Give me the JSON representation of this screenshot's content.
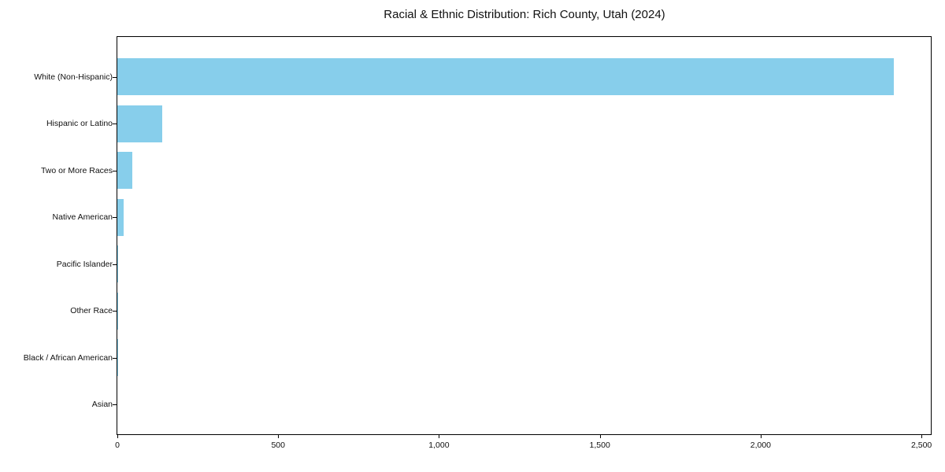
{
  "chart_data": {
    "type": "bar",
    "orientation": "horizontal",
    "title": "Racial & Ethnic Distribution: Rich County, Utah (2024)",
    "categories": [
      "White (Non-Hispanic)",
      "Hispanic or Latino",
      "Two or More Races",
      "Native American",
      "Pacific Islander",
      "Other Race",
      "Black / African American",
      "Asian"
    ],
    "values": [
      2415,
      140,
      47,
      20,
      3,
      1,
      1,
      0
    ],
    "xlabel": "",
    "ylabel": "",
    "xlim": [
      0,
      2534
    ],
    "x_ticks": [
      0,
      500,
      1000,
      1500,
      2000,
      2500
    ],
    "x_tick_labels": [
      "0",
      "500",
      "1,000",
      "1,500",
      "2,000",
      "2,500"
    ],
    "bar_color": "#87CEEB",
    "axis_color": "#000000",
    "text_color": "#111111",
    "grid": false,
    "legend": null
  }
}
